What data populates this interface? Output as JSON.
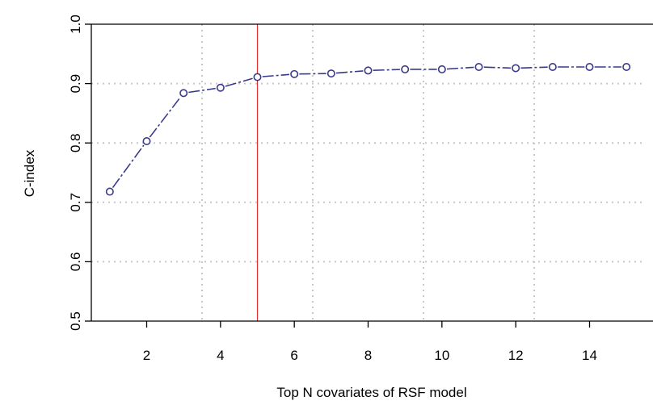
{
  "chart_data": {
    "type": "line",
    "title": "",
    "xlabel": "Top N covariates of RSF model",
    "ylabel": "C-index",
    "xlim": [
      0.5,
      15.5
    ],
    "ylim": [
      0.5,
      1.0
    ],
    "xticks": [
      2,
      4,
      6,
      8,
      10,
      12,
      14
    ],
    "xtick_labels": [
      "2",
      "4",
      "6",
      "8",
      "10",
      "12",
      "14"
    ],
    "yticks": [
      0.5,
      0.6,
      0.7,
      0.8,
      0.9,
      1.0
    ],
    "ytick_labels": [
      "0.5",
      "0.6",
      "0.7",
      "0.8",
      "0.9",
      "1.0"
    ],
    "grid": true,
    "grid_style": "dotted",
    "x_grid_at": [
      3.5,
      6.5,
      9.5,
      12.5
    ],
    "series": [
      {
        "color": "#3a3a8c",
        "marker": "open-circle",
        "line_style": "dash-dot",
        "x": [
          1,
          2,
          3,
          4,
          5,
          6,
          7,
          8,
          9,
          10,
          11,
          12,
          13,
          14,
          15
        ],
        "y": [
          0.718,
          0.803,
          0.884,
          0.893,
          0.911,
          0.916,
          0.917,
          0.922,
          0.924,
          0.924,
          0.928,
          0.926,
          0.928,
          0.928,
          0.928
        ]
      }
    ],
    "reference_line": {
      "axis": "x",
      "value": 5,
      "color": "#e03030"
    }
  }
}
